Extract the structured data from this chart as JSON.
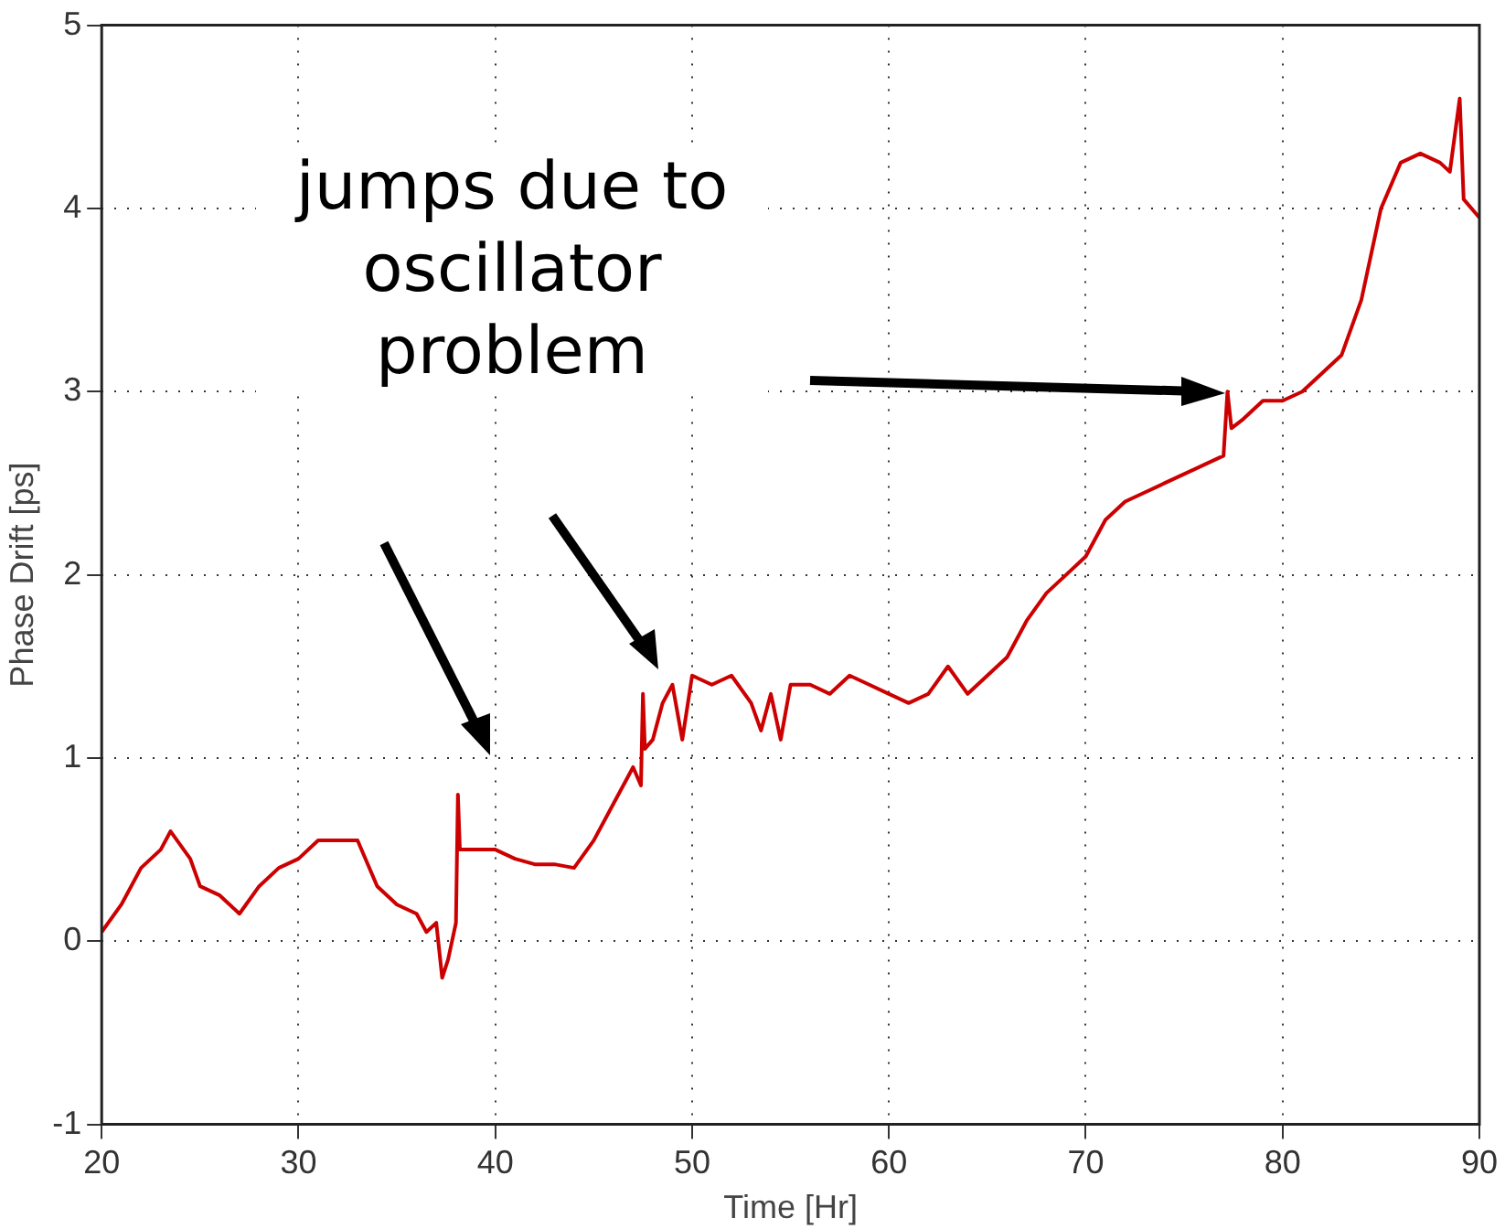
{
  "chart_data": {
    "type": "line",
    "xlabel": "Time [Hr]",
    "ylabel": "Phase Drift [ps]",
    "annotations": [
      "jumps due to oscillator problem"
    ],
    "xlim": [
      20,
      90
    ],
    "ylim": [
      -1,
      5
    ],
    "xticks": [
      20,
      30,
      40,
      50,
      60,
      70,
      80,
      90
    ],
    "yticks": [
      -1,
      0,
      1,
      2,
      3,
      4,
      5
    ],
    "grid": true,
    "legend": false,
    "marker": "none",
    "line_style": "solid",
    "series": [
      {
        "color": "#cc0000",
        "x": [
          20,
          21,
          22,
          23,
          23.5,
          24.5,
          25,
          26,
          27,
          28,
          29,
          30,
          31,
          32,
          33,
          34,
          35,
          36,
          36.5,
          37,
          37.3,
          37.6,
          38,
          38.1,
          38.2,
          39,
          40,
          41,
          42,
          43,
          44,
          45,
          46,
          47,
          47.4,
          47.5,
          47.6,
          48,
          48.5,
          49,
          49.5,
          50,
          51,
          52,
          53,
          53.5,
          54,
          54.5,
          55,
          56,
          57,
          58,
          59,
          60,
          61,
          62,
          63,
          64,
          65,
          66,
          67,
          68,
          69,
          70,
          71,
          72,
          73,
          74,
          75,
          76,
          77,
          77.2,
          77.4,
          78,
          79,
          80,
          81,
          82,
          83,
          84,
          85,
          86,
          87,
          88,
          88.5,
          89,
          89.2,
          90
        ],
        "values": [
          0.05,
          0.2,
          0.4,
          0.5,
          0.6,
          0.45,
          0.3,
          0.25,
          0.15,
          0.3,
          0.4,
          0.45,
          0.55,
          0.55,
          0.55,
          0.3,
          0.2,
          0.15,
          0.05,
          0.1,
          -0.2,
          -0.1,
          0.1,
          0.8,
          0.5,
          0.5,
          0.5,
          0.45,
          0.42,
          0.42,
          0.4,
          0.55,
          0.75,
          0.95,
          0.85,
          1.35,
          1.05,
          1.1,
          1.3,
          1.4,
          1.1,
          1.45,
          1.4,
          1.45,
          1.3,
          1.15,
          1.35,
          1.1,
          1.4,
          1.4,
          1.35,
          1.45,
          1.4,
          1.35,
          1.3,
          1.35,
          1.5,
          1.35,
          1.45,
          1.55,
          1.75,
          1.9,
          2.0,
          2.1,
          2.3,
          2.4,
          2.45,
          2.5,
          2.55,
          2.6,
          2.65,
          3.0,
          2.8,
          2.85,
          2.95,
          2.95,
          3.0,
          3.1,
          3.2,
          3.5,
          4.0,
          4.25,
          4.3,
          4.25,
          4.2,
          4.6,
          4.05,
          3.95
        ]
      }
    ]
  }
}
